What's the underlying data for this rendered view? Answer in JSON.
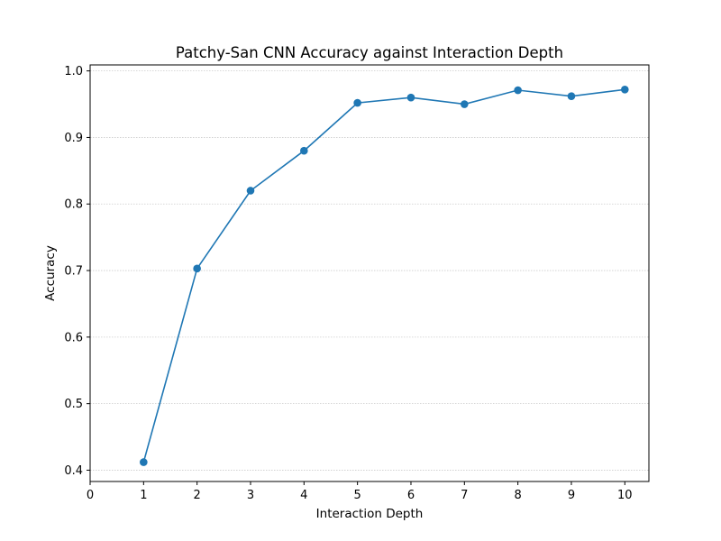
{
  "chart_data": {
    "type": "line",
    "title": "Patchy-San CNN Accuracy against Interaction Depth",
    "xlabel": "Interaction Depth",
    "ylabel": "Accuracy",
    "xlim": [
      0,
      10.45
    ],
    "ylim": [
      0.383,
      1.009
    ],
    "xticks": [
      0,
      1,
      2,
      3,
      4,
      5,
      6,
      7,
      8,
      9,
      10
    ],
    "yticks": [
      0.4,
      0.5,
      0.6,
      0.7,
      0.8,
      0.9,
      1.0
    ],
    "ytick_labels": [
      "0.4",
      "0.5",
      "0.6",
      "0.7",
      "0.8",
      "0.9",
      "1.0"
    ],
    "grid": "horizontal dotted",
    "series": [
      {
        "color": "#1f77b4",
        "marker": "circle",
        "x": [
          1,
          2,
          3,
          4,
          5,
          6,
          7,
          8,
          9,
          10
        ],
        "y": [
          0.412,
          0.703,
          0.82,
          0.88,
          0.952,
          0.96,
          0.95,
          0.971,
          0.962,
          0.972
        ]
      }
    ]
  }
}
